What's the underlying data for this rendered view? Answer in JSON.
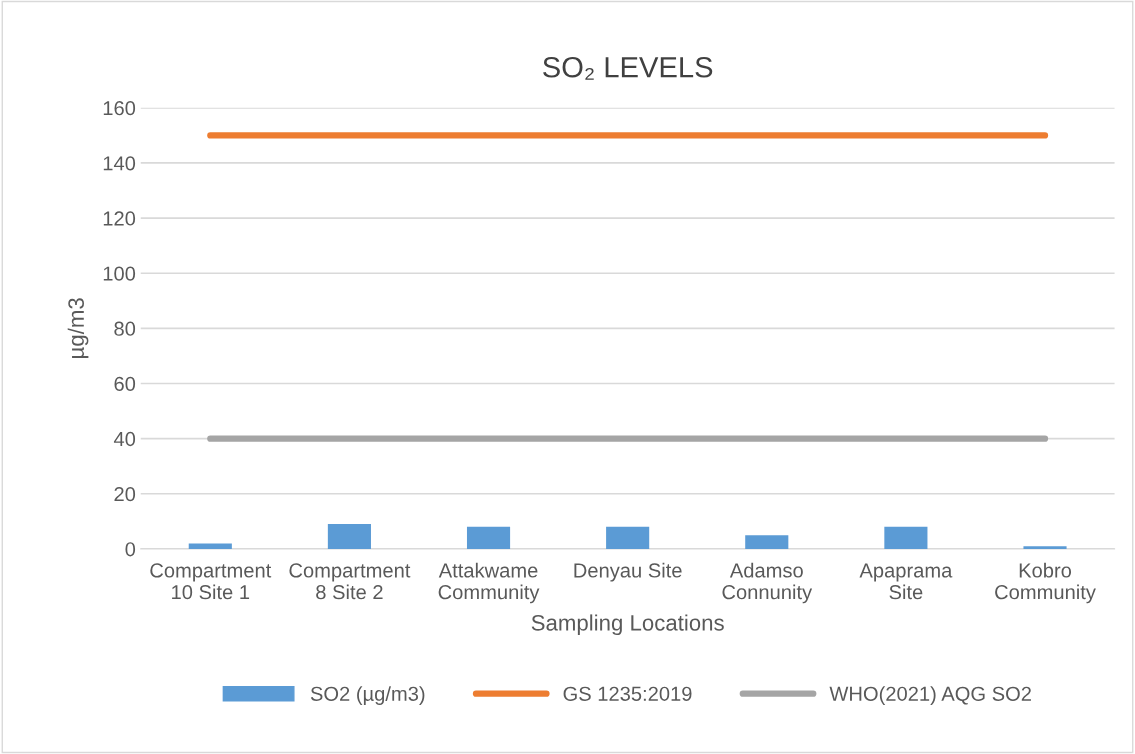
{
  "chart_data": {
    "type": "bar",
    "title": "SO₂ LEVELS",
    "xlabel": "Sampling Locations",
    "ylabel": "µg/m3",
    "categories": [
      "Compartment\n10 Site 1",
      "Compartment\n8 Site 2",
      "Attakwame\nCommunity",
      "Denyau Site",
      "Adamso\nConnunity",
      "Apaprama\nSite",
      "Kobro\nCommunity"
    ],
    "series": [
      {
        "name": "SO2 (µg/m3)",
        "color": "#5b9bd5",
        "values": [
          2,
          9,
          8,
          8,
          5,
          8,
          1
        ]
      },
      {
        "name": "GS 1235:2019",
        "type": "line",
        "color": "#ed7d31",
        "values": [
          150,
          150,
          150,
          150,
          150,
          150,
          150
        ]
      },
      {
        "name": "WHO(2021) AQG SO2",
        "type": "line",
        "color": "#a5a5a5",
        "values": [
          40,
          40,
          40,
          40,
          40,
          40,
          40
        ]
      }
    ],
    "ylim": [
      0,
      160
    ],
    "yticks": [
      0,
      20,
      40,
      60,
      80,
      100,
      120,
      140,
      160
    ],
    "grid": "y",
    "legend": "bottom",
    "marker": "none",
    "line_style": "solid"
  }
}
